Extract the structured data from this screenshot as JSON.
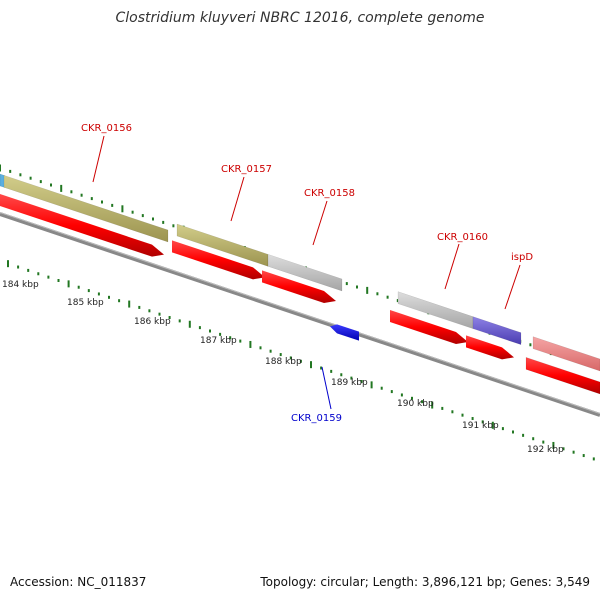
{
  "title": "Clostridium kluyveri NBRC 12016, complete genome",
  "footer": {
    "accession": "Accession: NC_011837",
    "stats": "Topology: circular; Length: 3,896,121 bp; Genes: 3,549"
  },
  "scale_labels": [
    "184 kbp",
    "185 kbp",
    "186 kbp",
    "187 kbp",
    "188 kbp",
    "189 kbp",
    "190 kbp",
    "191 kbp",
    "192 kbp"
  ],
  "genes": [
    {
      "name": "CKR_0156",
      "color": "#cc0000"
    },
    {
      "name": "CKR_0157",
      "color": "#cc0000"
    },
    {
      "name": "CKR_0158",
      "color": "#cc0000"
    },
    {
      "name": "CKR_0159",
      "color": "#0000cc"
    },
    {
      "name": "CKR_0160",
      "color": "#cc0000"
    },
    {
      "name": "ispD",
      "color": "#cc0000"
    }
  ],
  "colors": {
    "cds": "#ff0000",
    "reverse_cds": "#0000ff",
    "feature_olive": "#bdb76b",
    "feature_gray": "#c0c0c0",
    "feature_purple": "#6a5acd",
    "feature_pink": "#f08080",
    "backbone": "#777777",
    "tick": "#227722"
  }
}
